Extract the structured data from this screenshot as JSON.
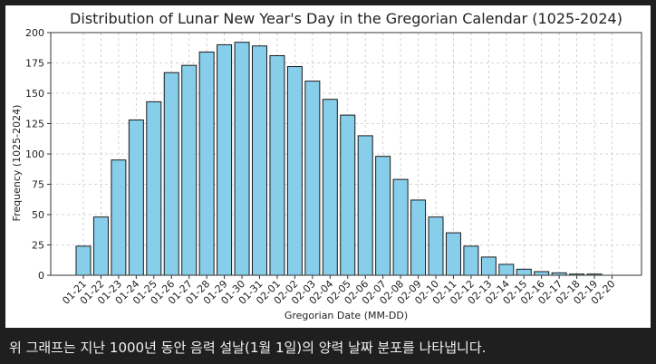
{
  "caption": "위 그래프는 지난 1000년 동안 음력 설날(1월 1일)의 양력 날짜 분포를 나타냅니다.",
  "colors": {
    "background": "#1f1f1f",
    "bar_fill": "#87ceeb",
    "bar_stroke": "#1a1a1a",
    "grid": "#c8c8c8",
    "caption_text": "#f2f2f2"
  },
  "chart_data": {
    "type": "bar",
    "title": "Distribution of Lunar New Year's Day in the Gregorian Calendar (1025-2024)",
    "xlabel": "Gregorian Date (MM-DD)",
    "ylabel": "Frequency (1025-2024)",
    "ylim": [
      0,
      200
    ],
    "yticks": [
      0,
      25,
      50,
      75,
      100,
      125,
      150,
      175,
      200
    ],
    "grid": true,
    "categories": [
      "01-21",
      "01-22",
      "01-23",
      "01-24",
      "01-25",
      "01-26",
      "01-27",
      "01-28",
      "01-29",
      "01-30",
      "01-31",
      "02-01",
      "02-02",
      "02-03",
      "02-04",
      "02-05",
      "02-06",
      "02-07",
      "02-08",
      "02-09",
      "02-10",
      "02-11",
      "02-12",
      "02-13",
      "02-14",
      "02-15",
      "02-16",
      "02-17",
      "02-18",
      "02-19",
      "02-20"
    ],
    "values": [
      24,
      48,
      95,
      128,
      143,
      167,
      173,
      184,
      190,
      192,
      189,
      181,
      172,
      160,
      145,
      132,
      115,
      98,
      79,
      62,
      48,
      35,
      24,
      15,
      9,
      5,
      3,
      2,
      1,
      1,
      0
    ]
  }
}
